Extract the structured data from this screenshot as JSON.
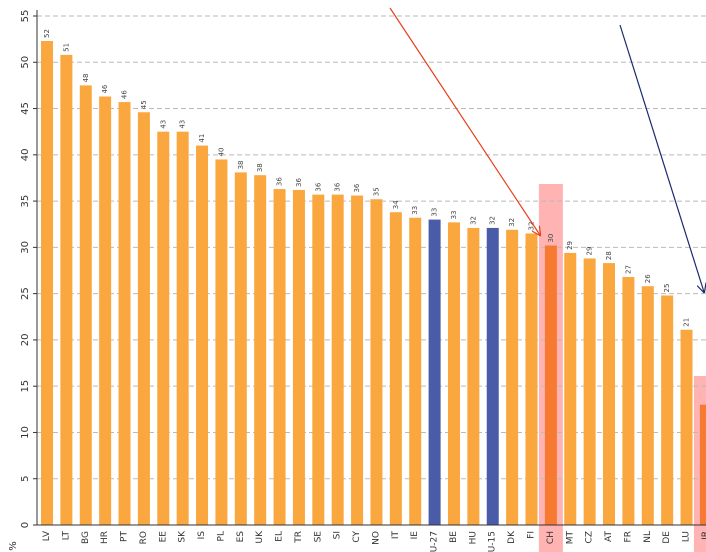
{
  "chart_data": {
    "type": "bar",
    "y_label": "%",
    "categories": [
      "LV",
      "LT",
      "BG",
      "HR",
      "PT",
      "RO",
      "EE",
      "SK",
      "IS",
      "PL",
      "ES",
      "UK",
      "EL",
      "TR",
      "SE",
      "SI",
      "CY",
      "NO",
      "IT",
      "IE",
      "U-27",
      "BE",
      "HU",
      "U-15",
      "DK",
      "FI",
      "CH",
      "MT",
      "CZ",
      "AT",
      "FR",
      "NL",
      "DE",
      "LU",
      "IR"
    ],
    "values": [
      52.3,
      50.8,
      47.5,
      46.3,
      45.7,
      44.6,
      42.5,
      42.5,
      41,
      39.5,
      38.1,
      37.8,
      36.3,
      36.2,
      35.7,
      35.7,
      35.6,
      35.2,
      33.8,
      33.2,
      33,
      32.7,
      32.1,
      32.1,
      31.9,
      31.5,
      30.2,
      29.4,
      28.8,
      28.3,
      26.8,
      25.8,
      24.8,
      21.1,
      13
    ],
    "value_labels": [
      "52",
      "51",
      "48",
      "46",
      "46",
      "45",
      "43",
      "43",
      "41",
      "40",
      "38",
      "38",
      "36",
      "36",
      "36",
      "36",
      "36",
      "35",
      "34",
      "33",
      "33",
      "33",
      "32",
      "32",
      "32",
      "32",
      "30",
      "29",
      "29",
      "28",
      "27",
      "26",
      "25",
      "21",
      null
    ],
    "colors": [
      "#f9a73e",
      "#f9a73e",
      "#f9a73e",
      "#f9a73e",
      "#f9a73e",
      "#f9a73e",
      "#f9a73e",
      "#f9a73e",
      "#f9a73e",
      "#f9a73e",
      "#f9a73e",
      "#f9a73e",
      "#f9a73e",
      "#f9a73e",
      "#f9a73e",
      "#f9a73e",
      "#f9a73e",
      "#f9a73e",
      "#f9a73e",
      "#f9a73e",
      "#4a5ba8",
      "#f9a73e",
      "#f9a73e",
      "#4a5ba8",
      "#f9a73e",
      "#f9a73e",
      "#f77a32",
      "#f9a73e",
      "#f9a73e",
      "#f9a73e",
      "#f9a73e",
      "#f9a73e",
      "#f9a73e",
      "#f9a73e",
      "#f77a32"
    ],
    "ylim": [
      0,
      55
    ],
    "yticks": [
      0,
      5,
      10,
      15,
      20,
      25,
      30,
      35,
      40,
      45,
      50,
      55
    ],
    "grid": true
  }
}
